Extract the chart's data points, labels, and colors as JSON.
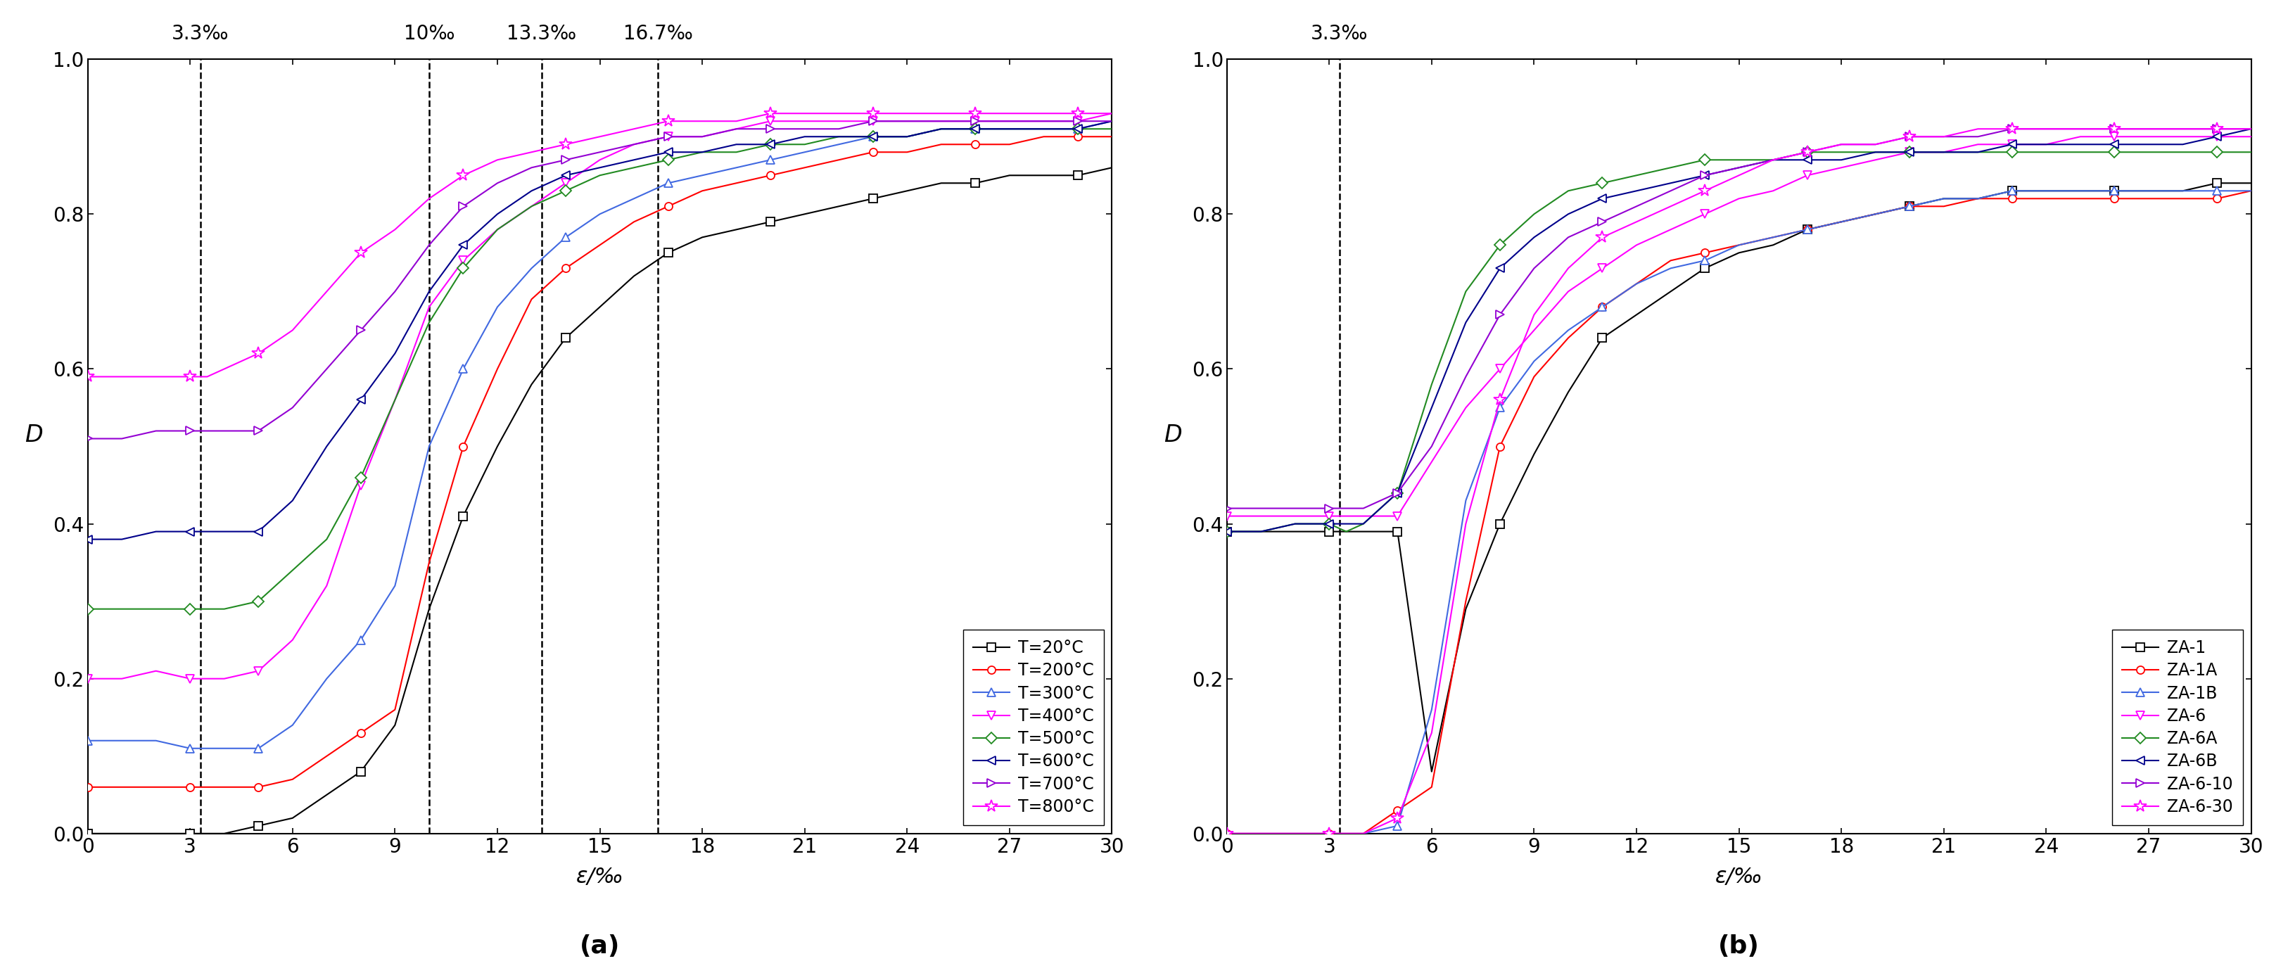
{
  "plot_a": {
    "title_annotations": [
      "3.3‰",
      "10‰",
      "13.3‰",
      "16.7‰"
    ],
    "vlines": [
      3.3,
      10.0,
      13.3,
      16.7
    ],
    "xlabel": "ε/‰",
    "ylabel": "D",
    "xlim": [
      0,
      30
    ],
    "ylim": [
      0,
      1.0
    ],
    "xticks": [
      0,
      3,
      6,
      9,
      12,
      15,
      18,
      21,
      24,
      27,
      30
    ],
    "yticks": [
      0.0,
      0.2,
      0.4,
      0.6,
      0.8,
      1.0
    ],
    "label": "(a)",
    "series": [
      {
        "label": "T=20°C",
        "color": "#000000",
        "marker": "s",
        "x": [
          0,
          1,
          2,
          3,
          3.5,
          4,
          5,
          6,
          7,
          8,
          9,
          10,
          11,
          12,
          13,
          14,
          15,
          16,
          17,
          18,
          19,
          20,
          21,
          22,
          23,
          24,
          25,
          26,
          27,
          28,
          29,
          30
        ],
        "y": [
          0.0,
          0.0,
          0.0,
          0.0,
          0.0,
          0.0,
          0.01,
          0.02,
          0.05,
          0.08,
          0.14,
          0.29,
          0.41,
          0.5,
          0.58,
          0.64,
          0.68,
          0.72,
          0.75,
          0.77,
          0.78,
          0.79,
          0.8,
          0.81,
          0.82,
          0.83,
          0.84,
          0.84,
          0.85,
          0.85,
          0.85,
          0.86
        ]
      },
      {
        "label": "T=200°C",
        "color": "#ff0000",
        "marker": "o",
        "x": [
          0,
          1,
          2,
          3,
          3.5,
          4,
          5,
          6,
          7,
          8,
          9,
          10,
          11,
          12,
          13,
          14,
          15,
          16,
          17,
          18,
          19,
          20,
          21,
          22,
          23,
          24,
          25,
          26,
          27,
          28,
          29,
          30
        ],
        "y": [
          0.06,
          0.06,
          0.06,
          0.06,
          0.06,
          0.06,
          0.06,
          0.07,
          0.1,
          0.13,
          0.16,
          0.35,
          0.5,
          0.6,
          0.69,
          0.73,
          0.76,
          0.79,
          0.81,
          0.83,
          0.84,
          0.85,
          0.86,
          0.87,
          0.88,
          0.88,
          0.89,
          0.89,
          0.89,
          0.9,
          0.9,
          0.9
        ]
      },
      {
        "label": "T=300°C",
        "color": "#4169E1",
        "marker": "^",
        "x": [
          0,
          1,
          2,
          3,
          3.5,
          4,
          5,
          6,
          7,
          8,
          9,
          10,
          11,
          12,
          13,
          14,
          15,
          16,
          17,
          18,
          19,
          20,
          21,
          22,
          23,
          24,
          25,
          26,
          27,
          28,
          29,
          30
        ],
        "y": [
          0.12,
          0.12,
          0.12,
          0.11,
          0.11,
          0.11,
          0.11,
          0.14,
          0.2,
          0.25,
          0.32,
          0.5,
          0.6,
          0.68,
          0.73,
          0.77,
          0.8,
          0.82,
          0.84,
          0.85,
          0.86,
          0.87,
          0.88,
          0.89,
          0.9,
          0.9,
          0.91,
          0.91,
          0.91,
          0.91,
          0.91,
          0.92
        ]
      },
      {
        "label": "T=400°C",
        "color": "#ff00ff",
        "marker": "v",
        "x": [
          0,
          1,
          2,
          3,
          3.5,
          4,
          5,
          6,
          7,
          8,
          9,
          10,
          11,
          12,
          13,
          14,
          15,
          16,
          17,
          18,
          19,
          20,
          21,
          22,
          23,
          24,
          25,
          26,
          27,
          28,
          29,
          30
        ],
        "y": [
          0.2,
          0.2,
          0.21,
          0.2,
          0.2,
          0.2,
          0.21,
          0.25,
          0.32,
          0.45,
          0.56,
          0.68,
          0.74,
          0.78,
          0.81,
          0.84,
          0.87,
          0.89,
          0.9,
          0.9,
          0.91,
          0.92,
          0.92,
          0.92,
          0.92,
          0.92,
          0.92,
          0.92,
          0.92,
          0.92,
          0.92,
          0.93
        ]
      },
      {
        "label": "T=500°C",
        "color": "#228B22",
        "marker": "D",
        "x": [
          0,
          1,
          2,
          3,
          3.5,
          4,
          5,
          6,
          7,
          8,
          9,
          10,
          11,
          12,
          13,
          14,
          15,
          16,
          17,
          18,
          19,
          20,
          21,
          22,
          23,
          24,
          25,
          26,
          27,
          28,
          29,
          30
        ],
        "y": [
          0.29,
          0.29,
          0.29,
          0.29,
          0.29,
          0.29,
          0.3,
          0.34,
          0.38,
          0.46,
          0.56,
          0.66,
          0.73,
          0.78,
          0.81,
          0.83,
          0.85,
          0.86,
          0.87,
          0.88,
          0.88,
          0.89,
          0.89,
          0.9,
          0.9,
          0.9,
          0.91,
          0.91,
          0.91,
          0.91,
          0.91,
          0.91
        ]
      },
      {
        "label": "T=600°C",
        "color": "#00008B",
        "marker": "<",
        "x": [
          0,
          1,
          2,
          3,
          3.5,
          4,
          5,
          6,
          7,
          8,
          9,
          10,
          11,
          12,
          13,
          14,
          15,
          16,
          17,
          18,
          19,
          20,
          21,
          22,
          23,
          24,
          25,
          26,
          27,
          28,
          29,
          30
        ],
        "y": [
          0.38,
          0.38,
          0.39,
          0.39,
          0.39,
          0.39,
          0.39,
          0.43,
          0.5,
          0.56,
          0.62,
          0.7,
          0.76,
          0.8,
          0.83,
          0.85,
          0.86,
          0.87,
          0.88,
          0.88,
          0.89,
          0.89,
          0.9,
          0.9,
          0.9,
          0.9,
          0.91,
          0.91,
          0.91,
          0.91,
          0.91,
          0.92
        ]
      },
      {
        "label": "T=700°C",
        "color": "#9400D3",
        "marker": ">",
        "x": [
          0,
          1,
          2,
          3,
          3.5,
          4,
          5,
          6,
          7,
          8,
          9,
          10,
          11,
          12,
          13,
          14,
          15,
          16,
          17,
          18,
          19,
          20,
          21,
          22,
          23,
          24,
          25,
          26,
          27,
          28,
          29,
          30
        ],
        "y": [
          0.51,
          0.51,
          0.52,
          0.52,
          0.52,
          0.52,
          0.52,
          0.55,
          0.6,
          0.65,
          0.7,
          0.76,
          0.81,
          0.84,
          0.86,
          0.87,
          0.88,
          0.89,
          0.9,
          0.9,
          0.91,
          0.91,
          0.91,
          0.91,
          0.92,
          0.92,
          0.92,
          0.92,
          0.92,
          0.92,
          0.92,
          0.92
        ]
      },
      {
        "label": "T=800°C",
        "color": "#ff00ff",
        "marker": "*",
        "x": [
          0,
          1,
          2,
          3,
          3.5,
          4,
          5,
          6,
          7,
          8,
          9,
          10,
          11,
          12,
          13,
          14,
          15,
          16,
          17,
          18,
          19,
          20,
          21,
          22,
          23,
          24,
          25,
          26,
          27,
          28,
          29,
          30
        ],
        "y": [
          0.59,
          0.59,
          0.59,
          0.59,
          0.59,
          0.6,
          0.62,
          0.65,
          0.7,
          0.75,
          0.78,
          0.82,
          0.85,
          0.87,
          0.88,
          0.89,
          0.9,
          0.91,
          0.92,
          0.92,
          0.92,
          0.93,
          0.93,
          0.93,
          0.93,
          0.93,
          0.93,
          0.93,
          0.93,
          0.93,
          0.93,
          0.93
        ]
      }
    ]
  },
  "plot_b": {
    "title_annotations": [
      "3.3‰"
    ],
    "vlines": [
      3.3
    ],
    "xlabel": "ε/‰",
    "ylabel": "D",
    "xlim": [
      0,
      30
    ],
    "ylim": [
      0,
      1.0
    ],
    "xticks": [
      0,
      3,
      6,
      9,
      12,
      15,
      18,
      21,
      24,
      27,
      30
    ],
    "yticks": [
      0.0,
      0.2,
      0.4,
      0.6,
      0.8,
      1.0
    ],
    "label": "(b)",
    "series": [
      {
        "label": "ZA-1",
        "color": "#000000",
        "marker": "s",
        "x": [
          0,
          1,
          2,
          3,
          3.5,
          4,
          5,
          6,
          7,
          8,
          9,
          10,
          11,
          12,
          13,
          14,
          15,
          16,
          17,
          18,
          19,
          20,
          21,
          22,
          23,
          24,
          25,
          26,
          27,
          28,
          29,
          30
        ],
        "y": [
          0.39,
          0.39,
          0.39,
          0.39,
          0.39,
          0.39,
          0.39,
          0.08,
          0.29,
          0.4,
          0.49,
          0.57,
          0.64,
          0.67,
          0.7,
          0.73,
          0.75,
          0.76,
          0.78,
          0.79,
          0.8,
          0.81,
          0.82,
          0.82,
          0.83,
          0.83,
          0.83,
          0.83,
          0.83,
          0.83,
          0.84,
          0.84
        ]
      },
      {
        "label": "ZA-1A",
        "color": "#ff0000",
        "marker": "o",
        "x": [
          0,
          1,
          2,
          3,
          3.5,
          4,
          5,
          6,
          7,
          8,
          9,
          10,
          11,
          12,
          13,
          14,
          15,
          16,
          17,
          18,
          19,
          20,
          21,
          22,
          23,
          24,
          25,
          26,
          27,
          28,
          29,
          30
        ],
        "y": [
          0.0,
          0.0,
          0.0,
          0.0,
          0.0,
          0.0,
          0.03,
          0.06,
          0.3,
          0.5,
          0.59,
          0.64,
          0.68,
          0.71,
          0.74,
          0.75,
          0.76,
          0.77,
          0.78,
          0.79,
          0.8,
          0.81,
          0.81,
          0.82,
          0.82,
          0.82,
          0.82,
          0.82,
          0.82,
          0.82,
          0.82,
          0.83
        ]
      },
      {
        "label": "ZA-1B",
        "color": "#4169E1",
        "marker": "^",
        "x": [
          0,
          1,
          2,
          3,
          3.5,
          4,
          5,
          6,
          7,
          8,
          9,
          10,
          11,
          12,
          13,
          14,
          15,
          16,
          17,
          18,
          19,
          20,
          21,
          22,
          23,
          24,
          25,
          26,
          27,
          28,
          29,
          30
        ],
        "y": [
          0.0,
          0.0,
          0.0,
          0.0,
          0.0,
          0.0,
          0.01,
          0.16,
          0.43,
          0.55,
          0.61,
          0.65,
          0.68,
          0.71,
          0.73,
          0.74,
          0.76,
          0.77,
          0.78,
          0.79,
          0.8,
          0.81,
          0.82,
          0.82,
          0.83,
          0.83,
          0.83,
          0.83,
          0.83,
          0.83,
          0.83,
          0.83
        ]
      },
      {
        "label": "ZA-6",
        "color": "#ff00ff",
        "marker": "v",
        "x": [
          0,
          1,
          2,
          3,
          3.5,
          4,
          5,
          6,
          7,
          8,
          9,
          10,
          11,
          12,
          13,
          14,
          15,
          16,
          17,
          18,
          19,
          20,
          21,
          22,
          23,
          24,
          25,
          26,
          27,
          28,
          29,
          30
        ],
        "y": [
          0.41,
          0.41,
          0.41,
          0.41,
          0.41,
          0.41,
          0.41,
          0.48,
          0.55,
          0.6,
          0.65,
          0.7,
          0.73,
          0.76,
          0.78,
          0.8,
          0.82,
          0.83,
          0.85,
          0.86,
          0.87,
          0.88,
          0.88,
          0.89,
          0.89,
          0.89,
          0.9,
          0.9,
          0.9,
          0.9,
          0.9,
          0.9
        ]
      },
      {
        "label": "ZA-6A",
        "color": "#228B22",
        "marker": "D",
        "x": [
          0,
          1,
          2,
          3,
          3.5,
          4,
          5,
          6,
          7,
          8,
          9,
          10,
          11,
          12,
          13,
          14,
          15,
          16,
          17,
          18,
          19,
          20,
          21,
          22,
          23,
          24,
          25,
          26,
          27,
          28,
          29,
          30
        ],
        "y": [
          0.39,
          0.39,
          0.4,
          0.4,
          0.39,
          0.4,
          0.44,
          0.58,
          0.7,
          0.76,
          0.8,
          0.83,
          0.84,
          0.85,
          0.86,
          0.87,
          0.87,
          0.87,
          0.88,
          0.88,
          0.88,
          0.88,
          0.88,
          0.88,
          0.88,
          0.88,
          0.88,
          0.88,
          0.88,
          0.88,
          0.88,
          0.88
        ]
      },
      {
        "label": "ZA-6B",
        "color": "#00008B",
        "marker": "<",
        "x": [
          0,
          1,
          2,
          3,
          3.5,
          4,
          5,
          6,
          7,
          8,
          9,
          10,
          11,
          12,
          13,
          14,
          15,
          16,
          17,
          18,
          19,
          20,
          21,
          22,
          23,
          24,
          25,
          26,
          27,
          28,
          29,
          30
        ],
        "y": [
          0.39,
          0.39,
          0.4,
          0.4,
          0.4,
          0.4,
          0.44,
          0.55,
          0.66,
          0.73,
          0.77,
          0.8,
          0.82,
          0.83,
          0.84,
          0.85,
          0.86,
          0.87,
          0.87,
          0.87,
          0.88,
          0.88,
          0.88,
          0.88,
          0.89,
          0.89,
          0.89,
          0.89,
          0.89,
          0.89,
          0.9,
          0.91
        ]
      },
      {
        "label": "ZA-6-10",
        "color": "#9400D3",
        "marker": ">",
        "x": [
          0,
          1,
          2,
          3,
          3.5,
          4,
          5,
          6,
          7,
          8,
          9,
          10,
          11,
          12,
          13,
          14,
          15,
          16,
          17,
          18,
          19,
          20,
          21,
          22,
          23,
          24,
          25,
          26,
          27,
          28,
          29,
          30
        ],
        "y": [
          0.42,
          0.42,
          0.42,
          0.42,
          0.42,
          0.42,
          0.44,
          0.5,
          0.59,
          0.67,
          0.73,
          0.77,
          0.79,
          0.81,
          0.83,
          0.85,
          0.86,
          0.87,
          0.88,
          0.89,
          0.89,
          0.9,
          0.9,
          0.9,
          0.91,
          0.91,
          0.91,
          0.91,
          0.91,
          0.91,
          0.91,
          0.91
        ]
      },
      {
        "label": "ZA-6-30",
        "color": "#ff00ff",
        "marker": "*",
        "x": [
          0,
          1,
          2,
          3,
          3.5,
          4,
          5,
          6,
          7,
          8,
          9,
          10,
          11,
          12,
          13,
          14,
          15,
          16,
          17,
          18,
          19,
          20,
          21,
          22,
          23,
          24,
          25,
          26,
          27,
          28,
          29,
          30
        ],
        "y": [
          0.0,
          0.0,
          0.0,
          0.0,
          0.0,
          0.0,
          0.02,
          0.13,
          0.4,
          0.56,
          0.67,
          0.73,
          0.77,
          0.79,
          0.81,
          0.83,
          0.85,
          0.87,
          0.88,
          0.89,
          0.89,
          0.9,
          0.9,
          0.91,
          0.91,
          0.91,
          0.91,
          0.91,
          0.91,
          0.91,
          0.91,
          0.91
        ]
      }
    ]
  }
}
